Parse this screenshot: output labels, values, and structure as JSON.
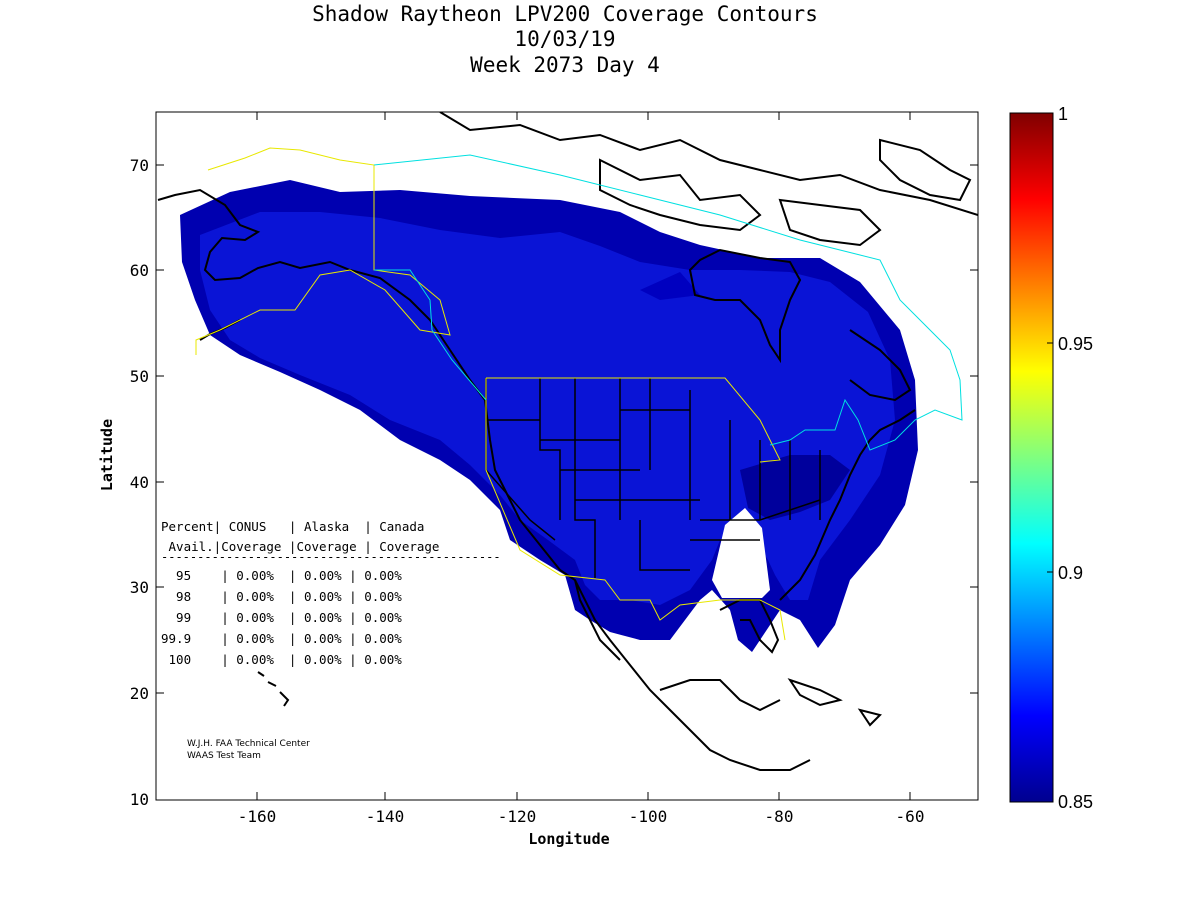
{
  "title": {
    "line1": "Shadow Raytheon LPV200 Coverage Contours",
    "line2": "10/03/19",
    "line3": "Week 2073 Day 4"
  },
  "axes": {
    "xlabel": "Longitude",
    "ylabel": "Latitude",
    "x_ticks": [
      "-160",
      "-140",
      "-120",
      "-100",
      "-80",
      "-60"
    ],
    "y_ticks": [
      "10",
      "20",
      "30",
      "40",
      "50",
      "60",
      "70"
    ],
    "xlim": [
      -175,
      -50
    ],
    "ylim": [
      10,
      75
    ]
  },
  "colorbar": {
    "ticks": [
      "1",
      "0.95",
      "0.9",
      "0.85"
    ],
    "range": [
      0.85,
      1.0
    ],
    "colormap": "jet"
  },
  "coverage_table": {
    "header1": "Percent| CONUS   | Alaska  | Canada",
    "header2": " Avail.|Coverage |Coverage | Coverage",
    "divider": "-----------------------------------------------",
    "rows": [
      "  95    | 0.00%  | 0.00% | 0.00%",
      "  98    | 0.00%  | 0.00% | 0.00%",
      "  99    | 0.00%  | 0.00% | 0.00%",
      "99.9    | 0.00%  | 0.00% | 0.00%",
      " 100    | 0.00%  | 0.00% | 0.00%"
    ]
  },
  "credit": {
    "line1": "W.J.H. FAA Technical Center",
    "line2": "WAAS Test Team"
  },
  "colors": {
    "coverage_dark": "#0000a0",
    "coverage_mid": "#0000c4",
    "coverage_main": "#0a14d8",
    "conus_boundary": "#e8e800",
    "canada_boundary": "#00e0e0"
  }
}
